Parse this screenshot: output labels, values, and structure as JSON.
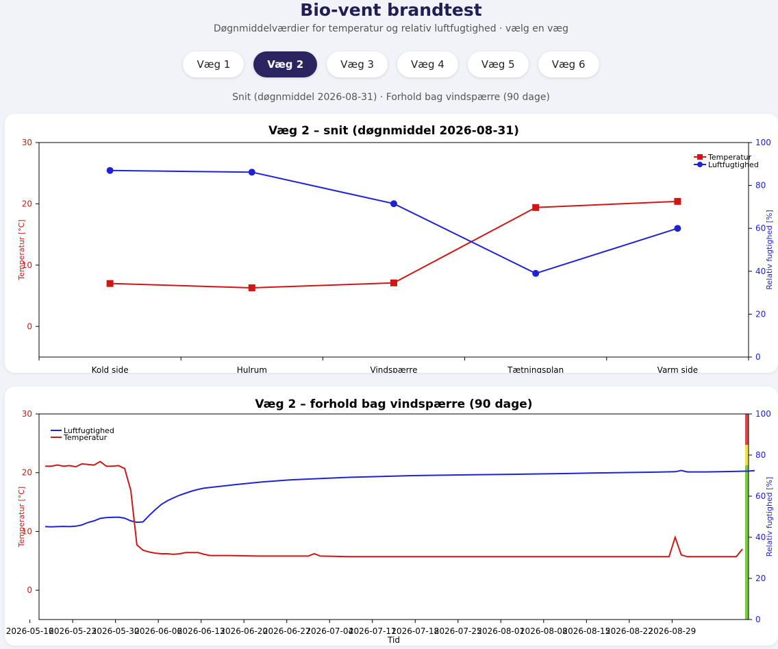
{
  "header": {
    "title": "Bio-vent brandtest",
    "subtitle": "Døgnmiddelværdier for temperatur og relativ luftfugtighed · vælg en væg"
  },
  "tabs": [
    {
      "label": "Væg 1",
      "active": false
    },
    {
      "label": "Væg 2",
      "active": true
    },
    {
      "label": "Væg 3",
      "active": false
    },
    {
      "label": "Væg 4",
      "active": false
    },
    {
      "label": "Væg 5",
      "active": false
    },
    {
      "label": "Væg 6",
      "active": false
    }
  ],
  "info_line": "Snit (døgnmiddel 2026-08-31) · Forhold bag vindspærre (90 dage)",
  "colors": {
    "temperature": "#d01515",
    "humidity": "#1f22d4",
    "accent": "#2a2560"
  },
  "chart_data": [
    {
      "type": "line",
      "title": "Væg 2 – snit (døgnmiddel 2026-08-31)",
      "categories": [
        "Kold side",
        "Hulrum",
        "Vindspærre",
        "Tætningsplan",
        "Varm side"
      ],
      "ylabel_left": "Temperatur [°C]",
      "ylabel_right": "Relativ fugtighed [%]",
      "ylim_left": [
        -5,
        30
      ],
      "ylim_right": [
        0,
        100
      ],
      "yticks_left": [
        0,
        10,
        20,
        30
      ],
      "yticks_right": [
        0,
        20,
        40,
        60,
        80,
        100
      ],
      "legend_position": "top-right",
      "series": [
        {
          "name": "Temperatur",
          "axis": "left",
          "marker": "square",
          "values": [
            7.0,
            6.3,
            7.1,
            19.4,
            20.4
          ]
        },
        {
          "name": "Luftfugtighed",
          "axis": "right",
          "marker": "circle",
          "values": [
            87.0,
            86.2,
            71.5,
            39.0,
            60.0
          ]
        }
      ]
    },
    {
      "type": "line",
      "title": "Væg 2 – forhold bag vindspærre (90 dage)",
      "xlabel": "Tid",
      "x_start": "2026-05-14",
      "xticks": [
        "2026-05-16",
        "2026-05-23",
        "2026-05-30",
        "2026-06-06",
        "2026-06-13",
        "2026-06-20",
        "2026-06-27",
        "2026-07-04",
        "2026-07-11",
        "2026-07-18",
        "2026-07-25",
        "2026-08-01",
        "2026-08-08",
        "2026-08-15",
        "2026-08-22",
        "2026-08-29"
      ],
      "ylabel_left": "Temperatur [°C]",
      "ylabel_right": "Relativ fugtighed [%]",
      "ylim_left": [
        -5,
        30
      ],
      "ylim_right": [
        0,
        100
      ],
      "yticks_left": [
        0,
        10,
        20,
        30
      ],
      "yticks_right": [
        0,
        20,
        40,
        60,
        80,
        100
      ],
      "legend_position": "top-left",
      "risk_bands": [
        {
          "from": 0,
          "to": 75,
          "color": "#7ac943"
        },
        {
          "from": 75,
          "to": 85,
          "color": "#ede04a"
        },
        {
          "from": 85,
          "to": 100,
          "color": "#d94848"
        }
      ],
      "series": [
        {
          "name": "Luftfugtighed",
          "axis": "right",
          "points": [
            [
              0,
              45.2
            ],
            [
              1,
              45.1
            ],
            [
              2,
              45.2
            ],
            [
              3,
              45.3
            ],
            [
              4,
              45.2
            ],
            [
              5,
              45.4
            ],
            [
              6,
              46.0
            ],
            [
              7,
              47.2
            ],
            [
              8,
              48.0
            ],
            [
              9,
              49.2
            ],
            [
              10,
              49.6
            ],
            [
              11,
              49.7
            ],
            [
              12,
              49.8
            ],
            [
              13,
              49.3
            ],
            [
              14,
              48.0
            ],
            [
              15,
              47.3
            ],
            [
              16,
              47.5
            ],
            [
              17,
              50.6
            ],
            [
              18,
              53.4
            ],
            [
              19,
              56.0
            ],
            [
              20,
              57.8
            ],
            [
              21,
              59.2
            ],
            [
              22,
              60.5
            ],
            [
              23,
              61.5
            ],
            [
              24,
              62.5
            ],
            [
              25,
              63.3
            ],
            [
              26,
              63.9
            ],
            [
              28,
              64.6
            ],
            [
              31,
              65.6
            ],
            [
              35,
              66.8
            ],
            [
              40,
              67.9
            ],
            [
              45,
              68.6
            ],
            [
              50,
              69.2
            ],
            [
              55,
              69.6
            ],
            [
              60,
              70.0
            ],
            [
              65,
              70.2
            ],
            [
              70,
              70.4
            ],
            [
              75,
              70.6
            ],
            [
              80,
              70.8
            ],
            [
              85,
              71.0
            ],
            [
              90,
              71.3
            ],
            [
              95,
              71.5
            ],
            [
              100,
              71.7
            ],
            [
              103,
              71.9
            ],
            [
              104,
              72.5
            ],
            [
              105,
              71.8
            ],
            [
              108,
              71.8
            ],
            [
              112,
              72.0
            ],
            [
              115,
              72.2
            ],
            [
              116,
              72.4
            ]
          ]
        },
        {
          "name": "Temperatur",
          "axis": "left",
          "points": [
            [
              0,
              21.1
            ],
            [
              1,
              21.1
            ],
            [
              2,
              21.3
            ],
            [
              3,
              21.1
            ],
            [
              4,
              21.2
            ],
            [
              5,
              21.0
            ],
            [
              6,
              21.5
            ],
            [
              7,
              21.4
            ],
            [
              8,
              21.3
            ],
            [
              9,
              21.9
            ],
            [
              10,
              21.1
            ],
            [
              11,
              21.1
            ],
            [
              12,
              21.2
            ],
            [
              13,
              20.7
            ],
            [
              14,
              17.0
            ],
            [
              15,
              7.7
            ],
            [
              16,
              6.8
            ],
            [
              17,
              6.5
            ],
            [
              18,
              6.3
            ],
            [
              19,
              6.2
            ],
            [
              20,
              6.2
            ],
            [
              21,
              6.1
            ],
            [
              22,
              6.2
            ],
            [
              23,
              6.4
            ],
            [
              24,
              6.4
            ],
            [
              25,
              6.4
            ],
            [
              26,
              6.1
            ],
            [
              27,
              5.9
            ],
            [
              30,
              5.9
            ],
            [
              35,
              5.8
            ],
            [
              40,
              5.8
            ],
            [
              43,
              5.8
            ],
            [
              44,
              6.2
            ],
            [
              45,
              5.8
            ],
            [
              50,
              5.7
            ],
            [
              60,
              5.7
            ],
            [
              70,
              5.7
            ],
            [
              80,
              5.7
            ],
            [
              90,
              5.7
            ],
            [
              100,
              5.7
            ],
            [
              102,
              5.7
            ],
            [
              103,
              9.0
            ],
            [
              104,
              6.0
            ],
            [
              105,
              5.7
            ],
            [
              110,
              5.7
            ],
            [
              113,
              5.7
            ],
            [
              114,
              7.0
            ]
          ]
        }
      ]
    }
  ]
}
